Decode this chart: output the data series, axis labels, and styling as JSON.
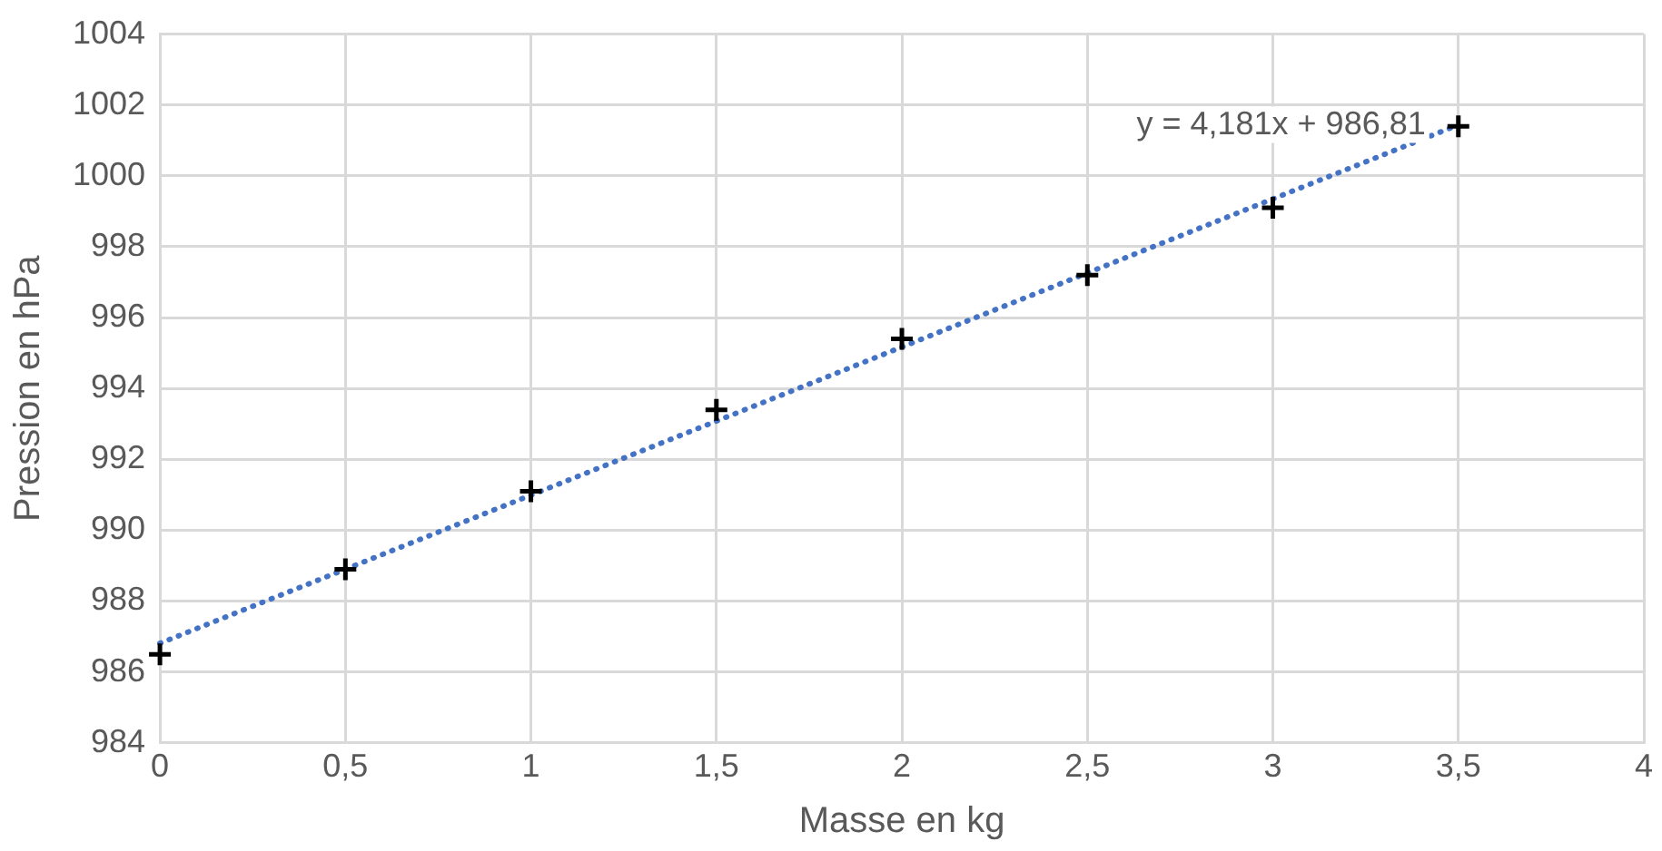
{
  "chart_data": {
    "type": "scatter",
    "xlabel": "Masse en kg",
    "ylabel": "Pression en hPa",
    "x": [
      0,
      0.5,
      1,
      1.5,
      2,
      2.5,
      3,
      3.5
    ],
    "series": [
      {
        "color": "#000000",
        "marker": "cross",
        "values": [
          986.5,
          988.9,
          991.1,
          993.4,
          995.4,
          997.2,
          999.1,
          1001.4
        ]
      },
      {
        "type": "line",
        "color": "#4472c4",
        "marker": "none",
        "line_style": "dotted",
        "x": [
          0,
          3.5
        ],
        "values": [
          986.81,
          1001.44
        ]
      }
    ],
    "annotations": [
      "y = 4,181x + 986,81"
    ],
    "xlim": [
      0,
      4
    ],
    "xticks": [
      0,
      {
        "value": 0.5,
        "label": "0,5"
      },
      1,
      {
        "value": 1.5,
        "label": "1,5"
      },
      2,
      {
        "value": 2.5,
        "label": "2,5"
      },
      3,
      {
        "value": 3.5,
        "label": "3,5"
      },
      4
    ],
    "ylim": [
      984,
      1004
    ],
    "yticks": [
      984,
      986,
      988,
      990,
      992,
      994,
      996,
      998,
      1000,
      1002,
      1004
    ],
    "grid": true,
    "legend": false
  }
}
